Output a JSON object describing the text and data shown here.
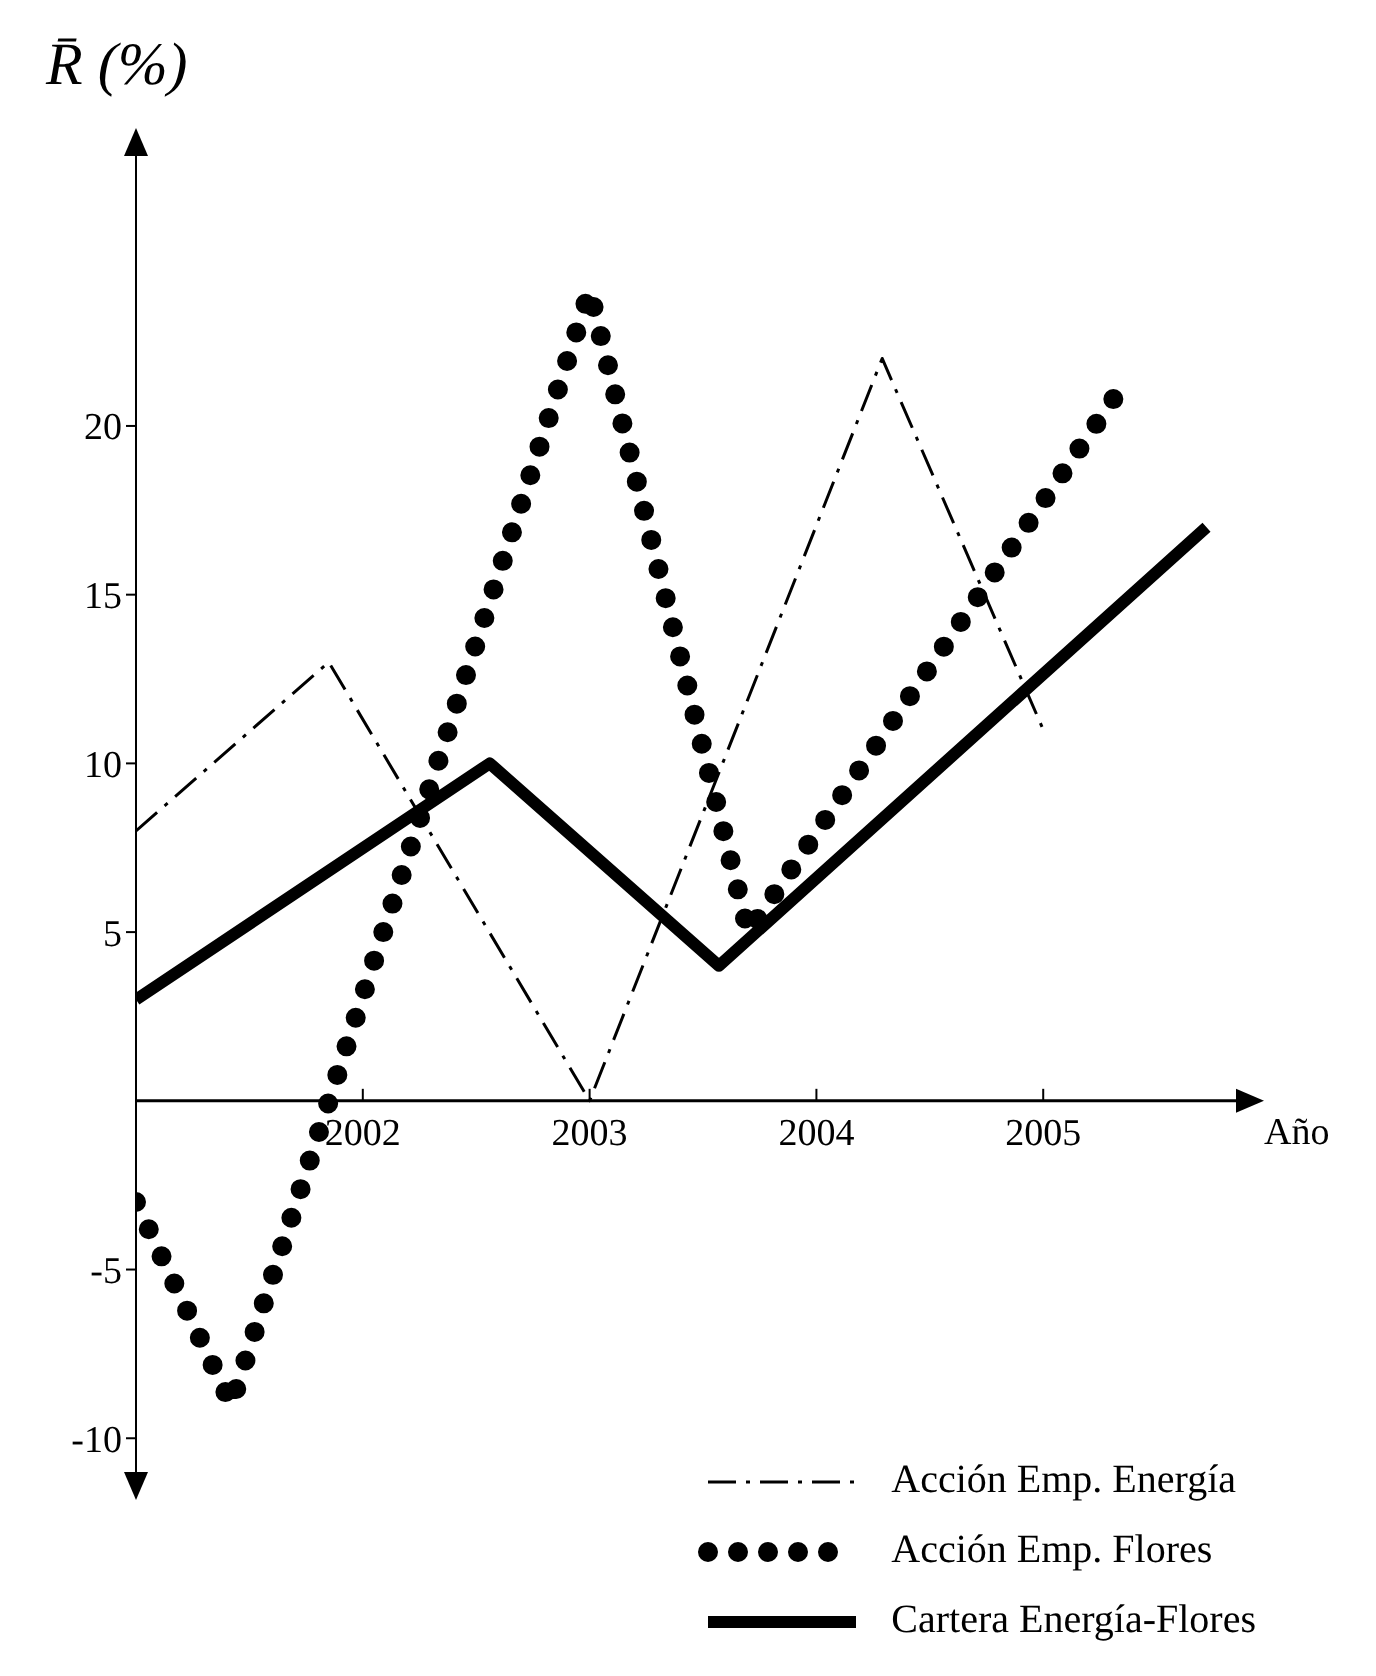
{
  "chart_data": {
    "type": "line",
    "ylabel": "R̄ (%)",
    "xlabel": "Año",
    "xlim": [
      2001,
      2005.85
    ],
    "xticks": [
      2002,
      2003,
      2004,
      2005
    ],
    "ylim": [
      -11,
      28
    ],
    "yticks": [
      -10,
      -5,
      5,
      10,
      15,
      20
    ],
    "grid": false,
    "legend": "bottom right",
    "series": [
      {
        "name": "Acción Emp. Energía",
        "color": "#000000",
        "line_style": "dashdot",
        "marker": "none",
        "x": [
          2001,
          2001.85,
          2003,
          2004.29,
          2005
        ],
        "values": [
          8,
          13,
          0,
          22,
          11
        ]
      },
      {
        "name": "Acción Emp. Flores",
        "color": "#000000",
        "line_style": "dotted",
        "marker": "none",
        "x": [
          2001,
          2001.42,
          2003,
          2003.7,
          2005.33
        ],
        "values": [
          -3,
          -9,
          24,
          5,
          21
        ]
      },
      {
        "name": "Cartera Energía-Flores",
        "color": "#000000",
        "line_style": "solid",
        "marker": "none",
        "x": [
          2001,
          2002.56,
          2003.57,
          2005.72
        ],
        "values": [
          3,
          10,
          4,
          17
        ]
      }
    ]
  }
}
